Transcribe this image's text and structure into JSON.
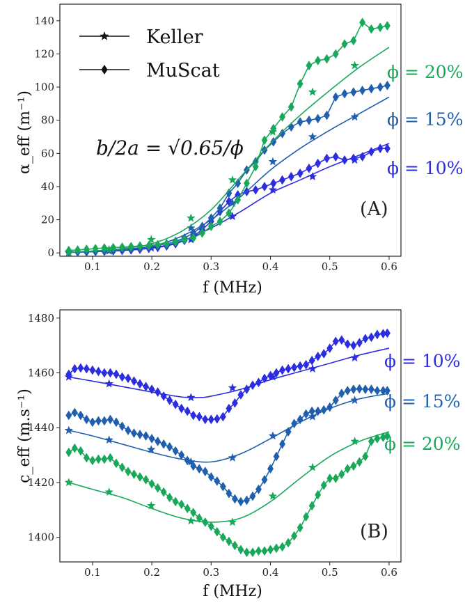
{
  "colors": {
    "phi_10": "#2d2de0",
    "phi_15": "#1f5fae",
    "phi_20": "#18a85a",
    "axis": "#222222"
  },
  "legend": {
    "keller": "Keller",
    "muscat": "MuScat"
  },
  "annotation": {
    "b_over_2a": "b/2a = √0.65/ϕ"
  },
  "phi_labels": {
    "p10": "ϕ = 10%",
    "p15": "ϕ = 15%",
    "p20": "ϕ = 20%"
  },
  "chart_data": [
    {
      "type": "line",
      "panel": "(A)",
      "xlabel": "f (MHz)",
      "ylabel": "α_eff (m⁻¹)",
      "xlim": [
        0.045,
        0.62
      ],
      "ylim": [
        -2,
        150
      ],
      "xticks": [
        "0.1",
        "0.2",
        "0.3",
        "0.4",
        "0.5",
        "0.6"
      ],
      "xtick_values": [
        0.1,
        0.2,
        0.3,
        0.4,
        0.5,
        0.6
      ],
      "yticks": [
        "0",
        "20",
        "40",
        "60",
        "80",
        "100",
        "120",
        "140"
      ],
      "ytick_values": [
        0,
        20,
        40,
        60,
        80,
        100,
        120,
        140
      ],
      "legend_position": "top-left",
      "grid": false,
      "series": [
        {
          "name": "Keller ϕ = 10%",
          "model": "Keller",
          "phi": "10%",
          "marker": "star",
          "colorKey": "phi_10",
          "curve_x": [
            0.06,
            0.1,
            0.15,
            0.2,
            0.25,
            0.3,
            0.35,
            0.4,
            0.45,
            0.5,
            0.55,
            0.6
          ],
          "curve_y": [
            0.3,
            0.8,
            1.5,
            3,
            7,
            15,
            25,
            36,
            44,
            52,
            59,
            66
          ],
          "marker_x": [
            0.06,
            0.128,
            0.199,
            0.266,
            0.336,
            0.404,
            0.471,
            0.542
          ],
          "marker_y": [
            0.3,
            1.2,
            3,
            8,
            22,
            38,
            46,
            56
          ]
        },
        {
          "name": "MuScat ϕ = 10%",
          "model": "MuScat",
          "phi": "10%",
          "marker": "diamond",
          "colorKey": "phi_10",
          "x": [
            0.06,
            0.075,
            0.09,
            0.105,
            0.12,
            0.135,
            0.15,
            0.165,
            0.18,
            0.195,
            0.21,
            0.225,
            0.24,
            0.255,
            0.27,
            0.285,
            0.3,
            0.315,
            0.33,
            0.345,
            0.36,
            0.375,
            0.39,
            0.405,
            0.42,
            0.435,
            0.45,
            0.465,
            0.48,
            0.495,
            0.51,
            0.525,
            0.54,
            0.555,
            0.57,
            0.585,
            0.597
          ],
          "y": [
            0.3,
            0.5,
            0.6,
            0.8,
            1.0,
            1.2,
            1.5,
            1.8,
            2.2,
            2.7,
            3.3,
            4.2,
            5.5,
            7.5,
            10,
            14,
            19,
            25,
            31,
            35,
            37,
            38,
            40,
            42,
            44,
            46,
            48,
            51,
            54,
            57,
            58,
            56,
            57,
            58,
            61,
            63,
            63
          ]
        },
        {
          "name": "Keller ϕ = 15%",
          "model": "Keller",
          "phi": "15%",
          "marker": "star",
          "colorKey": "phi_15",
          "curve_x": [
            0.06,
            0.1,
            0.15,
            0.2,
            0.25,
            0.3,
            0.35,
            0.4,
            0.45,
            0.5,
            0.55,
            0.6
          ],
          "curve_y": [
            0.4,
            1,
            2,
            4,
            10,
            20,
            34,
            50,
            63,
            74,
            84,
            94
          ],
          "marker_x": [
            0.06,
            0.128,
            0.199,
            0.266,
            0.336,
            0.404,
            0.471,
            0.542
          ],
          "marker_y": [
            0.4,
            1.6,
            4,
            15,
            30,
            55,
            70,
            82
          ]
        },
        {
          "name": "MuScat ϕ = 15%",
          "model": "MuScat",
          "phi": "15%",
          "marker": "diamond",
          "colorKey": "phi_15",
          "x": [
            0.06,
            0.075,
            0.09,
            0.105,
            0.12,
            0.135,
            0.15,
            0.165,
            0.18,
            0.195,
            0.21,
            0.225,
            0.24,
            0.255,
            0.27,
            0.285,
            0.3,
            0.315,
            0.33,
            0.345,
            0.36,
            0.375,
            0.39,
            0.405,
            0.42,
            0.435,
            0.45,
            0.465,
            0.48,
            0.495,
            0.51,
            0.525,
            0.54,
            0.555,
            0.57,
            0.585,
            0.597
          ],
          "y": [
            0.5,
            0.6,
            0.8,
            1.0,
            1.3,
            1.6,
            2.0,
            2.4,
            3.0,
            3.6,
            4.5,
            5.5,
            7,
            9,
            12,
            16,
            21,
            27,
            36,
            42,
            50,
            55,
            62,
            67,
            72,
            76,
            79,
            80,
            81,
            83,
            94,
            96,
            97,
            98,
            99,
            100,
            101
          ]
        },
        {
          "name": "Keller ϕ = 20%",
          "model": "Keller",
          "phi": "20%",
          "marker": "star",
          "colorKey": "phi_20",
          "curve_x": [
            0.06,
            0.1,
            0.15,
            0.2,
            0.25,
            0.3,
            0.35,
            0.4,
            0.45,
            0.5,
            0.55,
            0.6
          ],
          "curve_y": [
            0.5,
            1.2,
            2.6,
            5.5,
            13,
            26,
            46,
            66,
            83,
            98,
            112,
            124
          ],
          "marker_x": [
            0.06,
            0.128,
            0.199,
            0.266,
            0.336,
            0.404,
            0.471,
            0.542
          ],
          "marker_y": [
            0.5,
            2,
            8,
            21,
            44,
            73,
            97,
            113
          ]
        },
        {
          "name": "MuScat ϕ = 20%",
          "model": "MuScat",
          "phi": "20%",
          "marker": "diamond",
          "colorKey": "phi_20",
          "x": [
            0.06,
            0.075,
            0.09,
            0.105,
            0.12,
            0.135,
            0.15,
            0.165,
            0.18,
            0.195,
            0.21,
            0.225,
            0.24,
            0.255,
            0.27,
            0.285,
            0.3,
            0.315,
            0.33,
            0.345,
            0.36,
            0.375,
            0.39,
            0.405,
            0.42,
            0.435,
            0.45,
            0.465,
            0.48,
            0.495,
            0.51,
            0.525,
            0.54,
            0.555,
            0.57,
            0.585,
            0.597
          ],
          "y": [
            1.5,
            1.8,
            2.2,
            2.6,
            3.0,
            3.2,
            3.5,
            3.8,
            4.2,
            4.5,
            5.0,
            5.5,
            6.5,
            8,
            9,
            12,
            16,
            19,
            24,
            32,
            42,
            52,
            68,
            75,
            82,
            88,
            102,
            113,
            116,
            117,
            120,
            126,
            128,
            139,
            135,
            136,
            137
          ]
        }
      ]
    },
    {
      "type": "line",
      "panel": "(B)",
      "xlabel": "f (MHz)",
      "ylabel": "c_eff (m.s⁻¹)",
      "xlim": [
        0.045,
        0.62
      ],
      "ylim": [
        1391,
        1483
      ],
      "xticks": [
        "0.1",
        "0.2",
        "0.3",
        "0.4",
        "0.5",
        "0.6"
      ],
      "xtick_values": [
        0.1,
        0.2,
        0.3,
        0.4,
        0.5,
        0.6
      ],
      "yticks": [
        "1400",
        "1420",
        "1440",
        "1460",
        "1480"
      ],
      "ytick_values": [
        1400,
        1420,
        1440,
        1460,
        1480
      ],
      "grid": false,
      "series": [
        {
          "name": "Keller ϕ = 10%",
          "model": "Keller",
          "phi": "10%",
          "marker": "star",
          "colorKey": "phi_10",
          "curve_x": [
            0.06,
            0.1,
            0.15,
            0.2,
            0.25,
            0.28,
            0.3,
            0.35,
            0.4,
            0.45,
            0.5,
            0.55,
            0.6
          ],
          "curve_y": [
            1458.5,
            1457,
            1455,
            1453,
            1451.2,
            1451,
            1451.5,
            1454,
            1457.5,
            1460.5,
            1463.5,
            1466.5,
            1469
          ],
          "marker_x": [
            0.06,
            0.128,
            0.266,
            0.336,
            0.404,
            0.471,
            0.542
          ],
          "marker_y": [
            1458.5,
            1456,
            1451,
            1454.5,
            1458.5,
            1461.5,
            1465.5
          ]
        },
        {
          "name": "MuScat ϕ = 10%",
          "model": "MuScat",
          "phi": "10%",
          "marker": "diamond",
          "colorKey": "phi_10",
          "x": [
            0.06,
            0.07,
            0.08,
            0.09,
            0.1,
            0.11,
            0.12,
            0.13,
            0.14,
            0.15,
            0.16,
            0.17,
            0.18,
            0.19,
            0.2,
            0.21,
            0.22,
            0.23,
            0.24,
            0.25,
            0.26,
            0.27,
            0.28,
            0.29,
            0.3,
            0.31,
            0.32,
            0.33,
            0.34,
            0.35,
            0.36,
            0.37,
            0.38,
            0.39,
            0.4,
            0.41,
            0.42,
            0.43,
            0.44,
            0.45,
            0.46,
            0.47,
            0.48,
            0.49,
            0.5,
            0.51,
            0.52,
            0.53,
            0.54,
            0.55,
            0.56,
            0.57,
            0.58,
            0.59,
            0.597
          ],
          "y": [
            1459.5,
            1461.5,
            1461.8,
            1461.5,
            1461,
            1460.5,
            1460,
            1460,
            1459.5,
            1458.5,
            1458,
            1457,
            1456,
            1455,
            1454,
            1453,
            1451.5,
            1450,
            1448.5,
            1447,
            1446,
            1444.5,
            1444,
            1443,
            1443,
            1443.2,
            1444,
            1447,
            1449,
            1452,
            1454,
            1455.5,
            1456.5,
            1458,
            1459,
            1460,
            1461,
            1461.5,
            1462,
            1462.5,
            1463,
            1464.5,
            1466,
            1467,
            1469,
            1471.5,
            1472,
            1470.5,
            1470,
            1471,
            1472.5,
            1473,
            1474,
            1474.3,
            1474.5
          ]
        },
        {
          "name": "Keller ϕ = 15%",
          "model": "Keller",
          "phi": "15%",
          "marker": "star",
          "colorKey": "phi_15",
          "curve_x": [
            0.06,
            0.1,
            0.15,
            0.2,
            0.25,
            0.3,
            0.35,
            0.4,
            0.45,
            0.5,
            0.55,
            0.6
          ],
          "curve_y": [
            1439,
            1437,
            1434,
            1431,
            1428.5,
            1427.5,
            1430.5,
            1436,
            1442,
            1447,
            1450.5,
            1452.5
          ],
          "marker_x": [
            0.06,
            0.128,
            0.199,
            0.266,
            0.336,
            0.404,
            0.471,
            0.542
          ],
          "marker_y": [
            1439,
            1435.5,
            1432,
            1427.5,
            1429,
            1437,
            1444,
            1450
          ]
        },
        {
          "name": "MuScat ϕ = 15%",
          "model": "MuScat",
          "phi": "15%",
          "marker": "diamond",
          "colorKey": "phi_15",
          "x": [
            0.06,
            0.07,
            0.08,
            0.09,
            0.1,
            0.11,
            0.12,
            0.13,
            0.14,
            0.15,
            0.16,
            0.17,
            0.18,
            0.19,
            0.2,
            0.21,
            0.22,
            0.23,
            0.24,
            0.25,
            0.26,
            0.27,
            0.28,
            0.29,
            0.3,
            0.31,
            0.32,
            0.33,
            0.34,
            0.35,
            0.36,
            0.37,
            0.38,
            0.39,
            0.4,
            0.41,
            0.42,
            0.43,
            0.44,
            0.45,
            0.46,
            0.47,
            0.48,
            0.49,
            0.5,
            0.51,
            0.52,
            0.53,
            0.54,
            0.55,
            0.56,
            0.57,
            0.58,
            0.59,
            0.597
          ],
          "y": [
            1444.5,
            1445.5,
            1444.5,
            1443,
            1442,
            1442.5,
            1442.5,
            1443,
            1442,
            1440.5,
            1439,
            1438,
            1437.5,
            1437,
            1436,
            1435,
            1434,
            1433,
            1431.5,
            1430,
            1428,
            1426,
            1425,
            1424,
            1422,
            1420.5,
            1418.5,
            1416,
            1414,
            1413,
            1413.5,
            1415,
            1417.5,
            1421,
            1425,
            1429.5,
            1434,
            1438.5,
            1441.5,
            1443,
            1445,
            1446,
            1446,
            1446.5,
            1447.5,
            1450,
            1452.5,
            1453.5,
            1454,
            1454.2,
            1454,
            1454,
            1453.5,
            1453.5,
            1453.5
          ]
        },
        {
          "name": "Keller ϕ = 20%",
          "model": "Keller",
          "phi": "20%",
          "marker": "star",
          "colorKey": "phi_20",
          "curve_x": [
            0.06,
            0.1,
            0.15,
            0.2,
            0.25,
            0.3,
            0.35,
            0.4,
            0.45,
            0.5,
            0.55,
            0.6
          ],
          "curve_y": [
            1420,
            1417.5,
            1414.5,
            1410.5,
            1407,
            1405.5,
            1407,
            1413,
            1421.5,
            1429.5,
            1435,
            1438.5
          ],
          "marker_x": [
            0.06,
            0.128,
            0.199,
            0.266,
            0.336,
            0.404,
            0.471,
            0.542
          ],
          "marker_y": [
            1420,
            1416.5,
            1411.5,
            1406,
            1405.5,
            1415,
            1425.5,
            1435
          ]
        },
        {
          "name": "MuScat ϕ = 20%",
          "model": "MuScat",
          "phi": "20%",
          "marker": "diamond",
          "colorKey": "phi_20",
          "x": [
            0.06,
            0.07,
            0.08,
            0.09,
            0.1,
            0.11,
            0.12,
            0.13,
            0.14,
            0.15,
            0.16,
            0.17,
            0.18,
            0.19,
            0.2,
            0.21,
            0.22,
            0.23,
            0.24,
            0.25,
            0.26,
            0.27,
            0.28,
            0.29,
            0.3,
            0.31,
            0.32,
            0.33,
            0.34,
            0.35,
            0.36,
            0.37,
            0.38,
            0.39,
            0.4,
            0.41,
            0.42,
            0.43,
            0.44,
            0.45,
            0.46,
            0.47,
            0.48,
            0.49,
            0.5,
            0.51,
            0.52,
            0.53,
            0.54,
            0.55,
            0.56,
            0.57,
            0.58,
            0.59,
            0.597
          ],
          "y": [
            1431,
            1432.5,
            1431.5,
            1429,
            1428,
            1428.5,
            1428.5,
            1429,
            1427,
            1425.5,
            1424,
            1423,
            1422,
            1421,
            1419.5,
            1418,
            1416.5,
            1414.5,
            1413,
            1412,
            1410.5,
            1409,
            1407,
            1405.5,
            1404,
            1402,
            1400,
            1398.5,
            1397,
            1395.5,
            1394.5,
            1394.5,
            1395,
            1395,
            1395.5,
            1396,
            1396.5,
            1398,
            1400.5,
            1403.5,
            1407.5,
            1411.5,
            1415.5,
            1419,
            1421.5,
            1421.5,
            1423,
            1425,
            1426,
            1427.5,
            1429.5,
            1435,
            1436,
            1436.5,
            1437
          ]
        }
      ]
    }
  ]
}
